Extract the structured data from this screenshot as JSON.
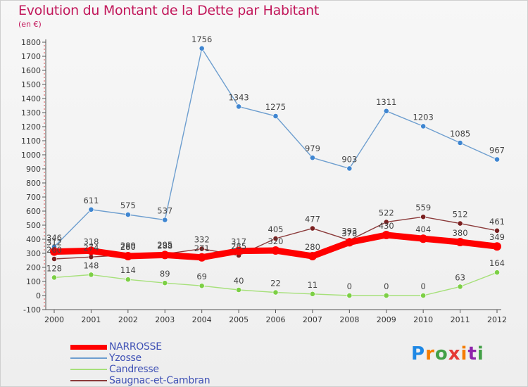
{
  "title": "Evolution du Montant de la Dette par Habitant",
  "subtitle": "(en €)",
  "logo": {
    "text": "Proxiti",
    "letters": [
      "P",
      "r",
      "o",
      "x",
      "i",
      "t",
      "i"
    ],
    "colors": [
      "#1e88e5",
      "#f57c00",
      "#43a047",
      "#e53935",
      "#f57c00",
      "#8e24aa",
      "#43a047"
    ]
  },
  "chart_data": {
    "type": "line",
    "title": "Evolution du Montant de la Dette par Habitant",
    "subtitle": "(en €)",
    "xlabel": "",
    "ylabel": "",
    "x": [
      2000,
      2001,
      2002,
      2003,
      2004,
      2005,
      2006,
      2007,
      2008,
      2009,
      2010,
      2011,
      2012
    ],
    "ylim": [
      -100,
      1800
    ],
    "yticks": [
      -100,
      0,
      100,
      200,
      300,
      400,
      500,
      600,
      700,
      800,
      900,
      1000,
      1100,
      1200,
      1300,
      1400,
      1500,
      1600,
      1700,
      1800
    ],
    "grid": false,
    "legend_position": "bottom-left",
    "series": [
      {
        "name": "NARROSSE",
        "color": "#ff0000",
        "emphasis": true,
        "values": [
          312,
          318,
          280,
          288,
          271,
          317,
          320,
          280,
          378,
          430,
          404,
          380,
          349
        ],
        "labels": [
          "312",
          "318",
          "280",
          "288",
          "271",
          "317",
          "320",
          "280",
          "378",
          "430",
          "404",
          "380",
          "349"
        ]
      },
      {
        "name": "Yzosse",
        "color": "#6d9ecf",
        "marker": "#3f86d1",
        "values": [
          346,
          611,
          575,
          537,
          1756,
          1343,
          1275,
          979,
          903,
          1311,
          1203,
          1085,
          967
        ],
        "labels": [
          "346",
          "611",
          "575",
          "537",
          "1756",
          "1343",
          "1275",
          "979",
          "903",
          "1311",
          "1203",
          "1085",
          "967"
        ]
      },
      {
        "name": "Candresse",
        "color": "#a6e07a",
        "marker": "#7ccf45",
        "values": [
          128,
          148,
          114,
          89,
          69,
          40,
          22,
          11,
          0,
          0,
          0,
          63,
          164
        ],
        "labels": [
          "128",
          "148",
          "114",
          "89",
          "69",
          "40",
          "22",
          "11",
          "0",
          "0",
          "0",
          "63",
          "164"
        ]
      },
      {
        "name": "Saugnac-et-Cambran",
        "color": "#8b3a3a",
        "marker": "#7a1f1f",
        "values": [
          260,
          274,
          289,
          295,
          332,
          285,
          405,
          477,
          393,
          522,
          559,
          512,
          461
        ],
        "labels": [
          "260",
          "274",
          "289",
          "295",
          "332",
          "285",
          "405",
          "477",
          "393",
          "522",
          "559",
          "512",
          "461"
        ]
      }
    ]
  }
}
